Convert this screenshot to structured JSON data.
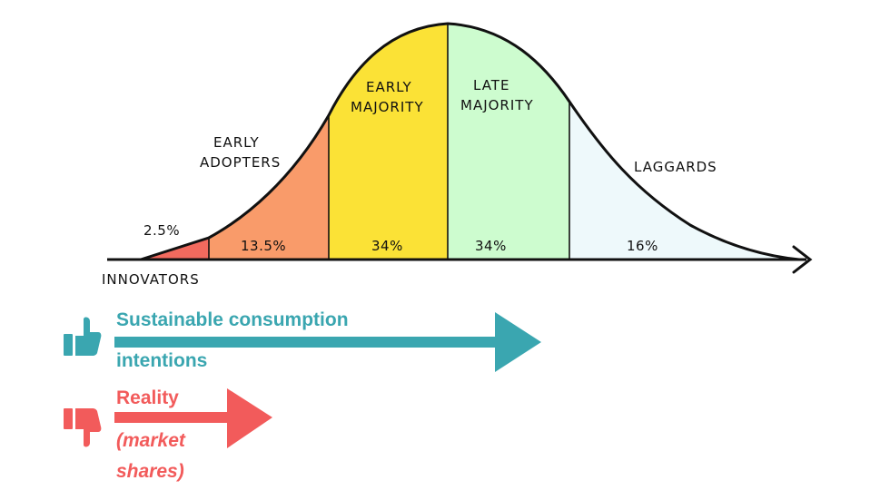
{
  "segments": [
    {
      "name": "INNOVATORS",
      "label_lines": [
        "INNOVATORS"
      ],
      "percent": "2.5%",
      "color": "#f26a5e"
    },
    {
      "name": "EARLY ADOPTERS",
      "label_lines": [
        "EARLY",
        "ADOPTERS"
      ],
      "percent": "13.5%",
      "color": "#f99b6a"
    },
    {
      "name": "EARLY MAJORITY",
      "label_lines": [
        "EARLY",
        "MAJORITY"
      ],
      "percent": "34%",
      "color": "#fbe236"
    },
    {
      "name": "LATE MAJORITY",
      "label_lines": [
        "LATE",
        "MAJORITY"
      ],
      "percent": "34%",
      "color": "#cdfccf"
    },
    {
      "name": "LAGGARDS",
      "label_lines": [
        "LAGGARDS"
      ],
      "percent": "16%",
      "color": "#eef9fb"
    }
  ],
  "legend": {
    "intentions": {
      "line1": "Sustainable consumption",
      "line2": "intentions",
      "color": "#3aa6b0",
      "icon": "thumbs-up-icon"
    },
    "reality": {
      "line1": "Reality",
      "line2": "(market",
      "line3": "shares)",
      "color": "#f25b5b",
      "icon": "thumbs-down-icon"
    }
  }
}
